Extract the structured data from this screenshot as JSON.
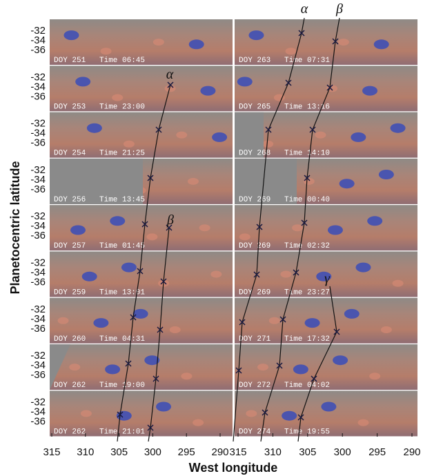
{
  "y_axis_label": "Planetocentric latitude",
  "x_axis_label": "West longitude",
  "y_tick_labels": [
    "-32",
    "-34",
    "-36"
  ],
  "x_ticks_left": [
    315,
    310,
    305,
    300,
    295,
    290
  ],
  "x_ticks_right": [
    315,
    310,
    305,
    300,
    295,
    290
  ],
  "panels_left": [
    {
      "doy": "DOY 251",
      "time": "Time 06:45"
    },
    {
      "doy": "DOY 253",
      "time": "Time 23:00"
    },
    {
      "doy": "DOY 254",
      "time": "Time 21:25"
    },
    {
      "doy": "DOY 256",
      "time": "Time 13:45"
    },
    {
      "doy": "DOY 257",
      "time": "Time 01:45"
    },
    {
      "doy": "DOY 259",
      "time": "Time 13:01"
    },
    {
      "doy": "DOY 260",
      "time": "Time 04:31"
    },
    {
      "doy": "DOY 262",
      "time": "Time 19:00"
    },
    {
      "doy": "DOY 262",
      "time": "Time 21:01"
    }
  ],
  "panels_right": [
    {
      "doy": "DOY 263",
      "time": "Time 07:31"
    },
    {
      "doy": "DOY 265",
      "time": "Time 13:16"
    },
    {
      "doy": "DOY 268",
      "time": "Time 14:10"
    },
    {
      "doy": "DOY 269",
      "time": "Time 00:40"
    },
    {
      "doy": "DOY 269",
      "time": "Time 02:32"
    },
    {
      "doy": "DOY 269",
      "time": "Time 23:27"
    },
    {
      "doy": "DOY 271",
      "time": "Time 17:32"
    },
    {
      "doy": "DOY 272",
      "time": "Time 04:02"
    },
    {
      "doy": "DOY 274",
      "time": "Time 19:55"
    }
  ],
  "feature_labels": {
    "alpha_top": "α",
    "beta_top": "β",
    "alpha_left": "α",
    "beta_left": "β",
    "gamma_right": "γ"
  }
}
